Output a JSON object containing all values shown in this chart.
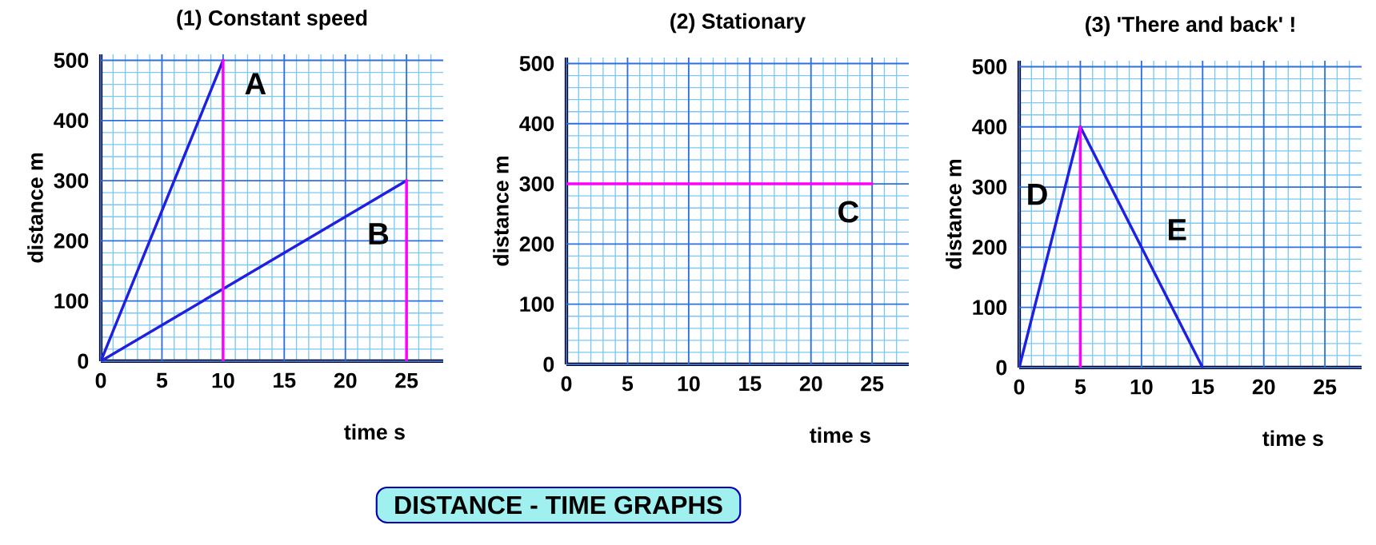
{
  "chart_data": [
    {
      "type": "line",
      "title": "(1) Constant speed",
      "xlabel": "time s",
      "ylabel": "distance m",
      "xlim": [
        0,
        28
      ],
      "ylim": [
        0,
        510
      ],
      "xticks": [
        0,
        {
          "value": 1,
          "label": null
        },
        {
          "value": 2,
          "label": null
        },
        {
          "value": 3,
          "label": null
        },
        {
          "value": 4,
          "label": null
        },
        5,
        {
          "value": 6,
          "label": null
        },
        {
          "value": 7,
          "label": null
        },
        {
          "value": 8,
          "label": null
        },
        {
          "value": 9,
          "label": null
        },
        10,
        {
          "value": 11,
          "label": null
        },
        {
          "value": 12,
          "label": null
        },
        {
          "value": 13,
          "label": null
        },
        {
          "value": 14,
          "label": null
        },
        15,
        {
          "value": 16,
          "label": null
        },
        {
          "value": 17,
          "label": null
        },
        {
          "value": 18,
          "label": null
        },
        {
          "value": 19,
          "label": null
        },
        20,
        {
          "value": 21,
          "label": null
        },
        {
          "value": 22,
          "label": null
        },
        {
          "value": 23,
          "label": null
        },
        {
          "value": 24,
          "label": null
        },
        25,
        {
          "value": 26,
          "label": null
        },
        {
          "value": 27,
          "label": null
        }
      ],
      "yticks": [
        0,
        {
          "value": 20,
          "label": null
        },
        {
          "value": 40,
          "label": null
        },
        {
          "value": 60,
          "label": null
        },
        {
          "value": 80,
          "label": null
        },
        100,
        {
          "value": 120,
          "label": null
        },
        {
          "value": 140,
          "label": null
        },
        {
          "value": 160,
          "label": null
        },
        {
          "value": 180,
          "label": null
        },
        200,
        {
          "value": 220,
          "label": null
        },
        {
          "value": 240,
          "label": null
        },
        {
          "value": 260,
          "label": null
        },
        {
          "value": 280,
          "label": null
        },
        300,
        {
          "value": 320,
          "label": null
        },
        {
          "value": 340,
          "label": null
        },
        {
          "value": 360,
          "label": null
        },
        {
          "value": 380,
          "label": null
        },
        400,
        {
          "value": 420,
          "label": null
        },
        {
          "value": 440,
          "label": null
        },
        {
          "value": 460,
          "label": null
        },
        {
          "value": 480,
          "label": null
        },
        500
      ],
      "grid": true,
      "series": [
        {
          "name": "A",
          "color": "#2020e0",
          "x": [
            0,
            10
          ],
          "values": [
            0,
            500
          ]
        },
        {
          "name": "B",
          "color": "#2020e0",
          "x": [
            0,
            25
          ],
          "values": [
            0,
            300
          ]
        },
        {
          "color": "#ff00ff",
          "x": [
            10,
            10
          ],
          "values": [
            0,
            500
          ]
        },
        {
          "color": "#ff00ff",
          "x": [
            25,
            25
          ],
          "values": [
            0,
            300
          ]
        }
      ]
    },
    {
      "type": "line",
      "title": "(2) Stationary",
      "xlabel": "time s",
      "ylabel": "distance m",
      "xlim": [
        0,
        28
      ],
      "ylim": [
        0,
        510
      ],
      "xticks": [
        0,
        {
          "value": 1,
          "label": null
        },
        {
          "value": 2,
          "label": null
        },
        {
          "value": 3,
          "label": null
        },
        {
          "value": 4,
          "label": null
        },
        5,
        {
          "value": 6,
          "label": null
        },
        {
          "value": 7,
          "label": null
        },
        {
          "value": 8,
          "label": null
        },
        {
          "value": 9,
          "label": null
        },
        10,
        {
          "value": 11,
          "label": null
        },
        {
          "value": 12,
          "label": null
        },
        {
          "value": 13,
          "label": null
        },
        {
          "value": 14,
          "label": null
        },
        15,
        {
          "value": 16,
          "label": null
        },
        {
          "value": 17,
          "label": null
        },
        {
          "value": 18,
          "label": null
        },
        {
          "value": 19,
          "label": null
        },
        20,
        {
          "value": 21,
          "label": null
        },
        {
          "value": 22,
          "label": null
        },
        {
          "value": 23,
          "label": null
        },
        {
          "value": 24,
          "label": null
        },
        25,
        {
          "value": 26,
          "label": null
        },
        {
          "value": 27,
          "label": null
        }
      ],
      "yticks": [
        0,
        {
          "value": 20,
          "label": null
        },
        {
          "value": 40,
          "label": null
        },
        {
          "value": 60,
          "label": null
        },
        {
          "value": 80,
          "label": null
        },
        100,
        {
          "value": 120,
          "label": null
        },
        {
          "value": 140,
          "label": null
        },
        {
          "value": 160,
          "label": null
        },
        {
          "value": 180,
          "label": null
        },
        200,
        {
          "value": 220,
          "label": null
        },
        {
          "value": 240,
          "label": null
        },
        {
          "value": 260,
          "label": null
        },
        {
          "value": 280,
          "label": null
        },
        300,
        {
          "value": 320,
          "label": null
        },
        {
          "value": 340,
          "label": null
        },
        {
          "value": 360,
          "label": null
        },
        {
          "value": 380,
          "label": null
        },
        400,
        {
          "value": 420,
          "label": null
        },
        {
          "value": 440,
          "label": null
        },
        {
          "value": 460,
          "label": null
        },
        {
          "value": 480,
          "label": null
        },
        500
      ],
      "grid": true,
      "series": [
        {
          "name": "C",
          "color": "#ff00ff",
          "x": [
            0,
            25
          ],
          "values": [
            300,
            300
          ]
        }
      ],
      "annotations": [
        "DISTANCE - TIME GRAPHS"
      ]
    },
    {
      "type": "line",
      "title": "(3) 'There and back' !",
      "xlabel": "time s",
      "ylabel": "distance m",
      "xlim": [
        0,
        28
      ],
      "ylim": [
        0,
        510
      ],
      "xticks": [
        0,
        {
          "value": 1,
          "label": null
        },
        {
          "value": 2,
          "label": null
        },
        {
          "value": 3,
          "label": null
        },
        {
          "value": 4,
          "label": null
        },
        5,
        {
          "value": 6,
          "label": null
        },
        {
          "value": 7,
          "label": null
        },
        {
          "value": 8,
          "label": null
        },
        {
          "value": 9,
          "label": null
        },
        10,
        {
          "value": 11,
          "label": null
        },
        {
          "value": 12,
          "label": null
        },
        {
          "value": 13,
          "label": null
        },
        {
          "value": 14,
          "label": null
        },
        15,
        {
          "value": 16,
          "label": null
        },
        {
          "value": 17,
          "label": null
        },
        {
          "value": 18,
          "label": null
        },
        {
          "value": 19,
          "label": null
        },
        20,
        {
          "value": 21,
          "label": null
        },
        {
          "value": 22,
          "label": null
        },
        {
          "value": 23,
          "label": null
        },
        {
          "value": 24,
          "label": null
        },
        25,
        {
          "value": 26,
          "label": null
        },
        {
          "value": 27,
          "label": null
        }
      ],
      "yticks": [
        0,
        {
          "value": 20,
          "label": null
        },
        {
          "value": 40,
          "label": null
        },
        {
          "value": 60,
          "label": null
        },
        {
          "value": 80,
          "label": null
        },
        100,
        {
          "value": 120,
          "label": null
        },
        {
          "value": 140,
          "label": null
        },
        {
          "value": 160,
          "label": null
        },
        {
          "value": 180,
          "label": null
        },
        200,
        {
          "value": 220,
          "label": null
        },
        {
          "value": 240,
          "label": null
        },
        {
          "value": 260,
          "label": null
        },
        {
          "value": 280,
          "label": null
        },
        300,
        {
          "value": 320,
          "label": null
        },
        {
          "value": 340,
          "label": null
        },
        {
          "value": 360,
          "label": null
        },
        {
          "value": 380,
          "label": null
        },
        400,
        {
          "value": 420,
          "label": null
        },
        {
          "value": 440,
          "label": null
        },
        {
          "value": 460,
          "label": null
        },
        {
          "value": 480,
          "label": null
        },
        500
      ],
      "grid": true,
      "series": [
        {
          "name": "D",
          "color": "#2020e0",
          "x": [
            0,
            5
          ],
          "values": [
            0,
            400
          ]
        },
        {
          "name": "E",
          "color": "#2020e0",
          "x": [
            5,
            15
          ],
          "values": [
            400,
            0
          ]
        },
        {
          "color": "#ff00ff",
          "x": [
            5,
            5
          ],
          "values": [
            0,
            400
          ]
        }
      ]
    }
  ]
}
